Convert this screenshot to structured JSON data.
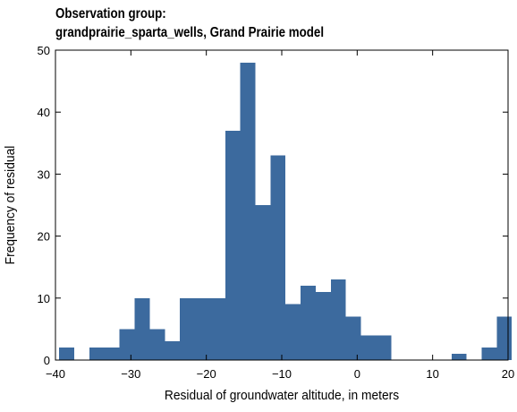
{
  "chart_data": {
    "type": "bar",
    "title_line1": "Observation group:",
    "title_line2": "grandprairie_sparta_wells, Grand Prairie model",
    "xlabel": "Residual of groundwater altitude, in meters",
    "ylabel": "Frequency of residual",
    "xlim": [
      -40,
      20
    ],
    "ylim": [
      0,
      50
    ],
    "xticks": [
      -40,
      -30,
      -20,
      -10,
      0,
      10,
      20
    ],
    "yticks": [
      0,
      10,
      20,
      30,
      40,
      50
    ],
    "bin_width": 2,
    "bar_color": "#3c6a9e",
    "bins": [
      {
        "x0": -39.5,
        "count": 2
      },
      {
        "x0": -37.5,
        "count": 0
      },
      {
        "x0": -35.5,
        "count": 2
      },
      {
        "x0": -33.5,
        "count": 2
      },
      {
        "x0": -31.5,
        "count": 5
      },
      {
        "x0": -29.5,
        "count": 10
      },
      {
        "x0": -27.5,
        "count": 5
      },
      {
        "x0": -25.5,
        "count": 3
      },
      {
        "x0": -23.5,
        "count": 10
      },
      {
        "x0": -21.5,
        "count": 10
      },
      {
        "x0": -19.5,
        "count": 10
      },
      {
        "x0": -17.5,
        "count": 37
      },
      {
        "x0": -15.5,
        "count": 48
      },
      {
        "x0": -13.5,
        "count": 25
      },
      {
        "x0": -11.5,
        "count": 33
      },
      {
        "x0": -9.5,
        "count": 9
      },
      {
        "x0": -7.5,
        "count": 12
      },
      {
        "x0": -5.5,
        "count": 11
      },
      {
        "x0": -3.5,
        "count": 13
      },
      {
        "x0": -1.5,
        "count": 7
      },
      {
        "x0": 0.5,
        "count": 4
      },
      {
        "x0": 2.5,
        "count": 4
      },
      {
        "x0": 4.5,
        "count": 0
      },
      {
        "x0": 6.5,
        "count": 0
      },
      {
        "x0": 8.5,
        "count": 0
      },
      {
        "x0": 10.5,
        "count": 0
      },
      {
        "x0": 12.5,
        "count": 1
      },
      {
        "x0": 14.5,
        "count": 0
      },
      {
        "x0": 16.5,
        "count": 2
      },
      {
        "x0": 18.5,
        "count": 7
      }
    ]
  }
}
